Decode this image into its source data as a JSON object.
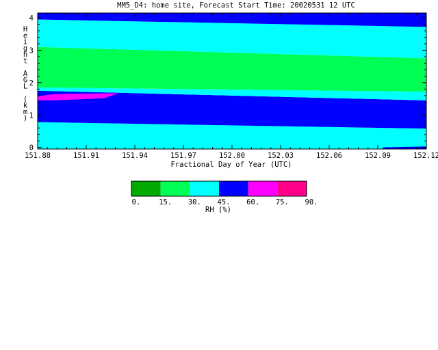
{
  "title": "MM5_D4: home site,  Forecast Start Time: 20020531 12 UTC",
  "chart_data": {
    "type": "heatmap",
    "xlabel": "Fractional Day of Year (UTC)",
    "ylabel": "Height AGL (km)",
    "xlim": [
      151.88,
      152.12
    ],
    "ylim": [
      -0.05,
      4.15
    ],
    "x_ticks": [
      "151.88",
      "151.91",
      "151.94",
      "151.97",
      "152.00",
      "152.03",
      "152.06",
      "152.09",
      "152.12"
    ],
    "y_ticks": [
      "0",
      "1",
      "2",
      "3",
      "4"
    ],
    "colorbar": {
      "label": "RH (%)",
      "levels": [
        "0.",
        "15.",
        "30.",
        "45.",
        "60.",
        "75.",
        "90."
      ],
      "colors": [
        "#00aa00",
        "#00ff55",
        "#00ffff",
        "#0000ff",
        "#ff00ff",
        "#ff0088"
      ]
    },
    "bands": [
      {
        "range": "30-45",
        "color": "#00ffff",
        "y_bottom_start": -0.05,
        "y_bottom_end": -0.05,
        "y_top_start": 0.78,
        "y_top_end": 0.58
      },
      {
        "range": "45-60",
        "color": "#0000ff",
        "y_bottom_start": 0.78,
        "y_bottom_end": 0.58,
        "y_top_start": 1.75,
        "y_top_end": 1.45
      },
      {
        "range": "30-45",
        "color": "#00ffff",
        "y_bottom_start": 1.75,
        "y_bottom_end": 1.45,
        "y_top_start": 1.85,
        "y_top_end": 1.72
      },
      {
        "range": "15-30",
        "color": "#00ff55",
        "y_bottom_start": 1.85,
        "y_bottom_end": 1.72,
        "y_top_start": 3.1,
        "y_top_end": 2.75
      },
      {
        "range": "30-45",
        "color": "#00ffff",
        "y_bottom_start": 3.1,
        "y_bottom_end": 2.75,
        "y_top_start": 3.95,
        "y_top_end": 3.72
      },
      {
        "range": "45-60",
        "color": "#0000ff",
        "y_bottom_start": 3.95,
        "y_bottom_end": 3.72,
        "y_top_start": 4.15,
        "y_top_end": 4.15
      }
    ],
    "regions": [
      {
        "range": "60-75",
        "color": "#ff00ff",
        "points": [
          [
            151.88,
            1.45
          ],
          [
            151.88,
            1.58
          ],
          [
            151.891,
            1.65
          ],
          [
            151.925,
            1.67
          ],
          [
            151.93,
            1.67
          ],
          [
            151.921,
            1.52
          ],
          [
            151.89,
            1.45
          ]
        ]
      },
      {
        "range": "45-60",
        "color": "#0000ff",
        "points": [
          [
            152.093,
            0.0
          ],
          [
            152.12,
            0.03
          ],
          [
            152.12,
            -0.05
          ],
          [
            152.093,
            -0.05
          ]
        ]
      }
    ]
  }
}
